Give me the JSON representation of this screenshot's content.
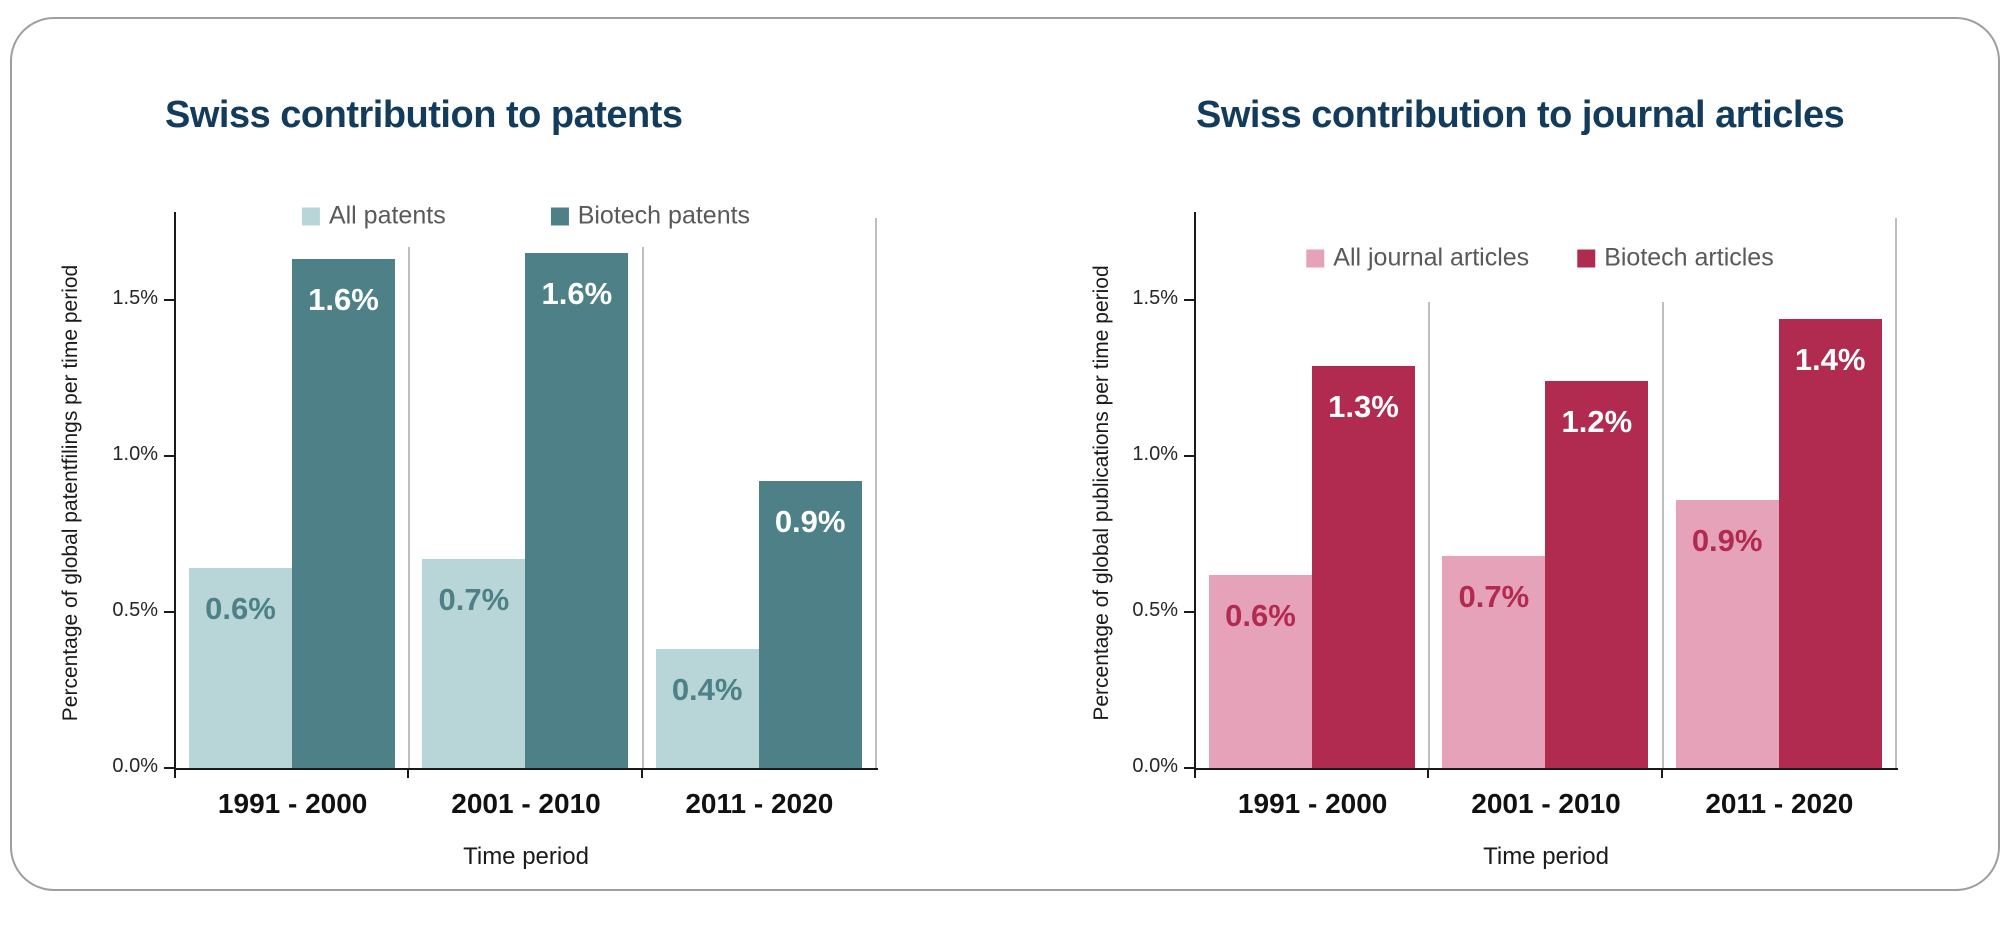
{
  "colors": {
    "title_text": "#133C5C",
    "legend_text": "#595959",
    "axis_line": "#1A1A1A",
    "separator_line": "#BFBFBF",
    "card_border": "#9E9E9E",
    "tick_label_text": "#262626",
    "category_label_text": "#111111"
  },
  "chart_data": [
    {
      "type": "bar",
      "title": "Swiss contribution to patents",
      "xlabel": "Time period",
      "ylabel": "Percentage of global patentfilings per time period",
      "categories": [
        "1991 - 2000",
        "2001 - 2010",
        "2011 - 2020"
      ],
      "series": [
        {
          "name": "All patents",
          "color": "#B8D6D8",
          "label_color": "#4D8187",
          "values": [
            0.6,
            0.7,
            0.4
          ],
          "labels": [
            "0.6%",
            "0.7%",
            "0.4%"
          ],
          "bar_heights_pct": [
            0.64,
            0.67,
            0.38
          ]
        },
        {
          "name": "Biotech patents",
          "color": "#4D8187",
          "label_color": "#FFFFFF",
          "values": [
            1.6,
            1.6,
            0.9
          ],
          "labels": [
            "1.6%",
            "1.6%",
            "0.9%"
          ],
          "bar_heights_pct": [
            1.63,
            1.65,
            0.92
          ]
        }
      ],
      "y_ticks": [
        "0.0%",
        "0.5%",
        "1.0%",
        "1.5%"
      ],
      "ylim": [
        0,
        1.75
      ],
      "legend_position": "top",
      "grid": "vertical category separators only"
    },
    {
      "type": "bar",
      "title": "Swiss contribution to journal articles",
      "xlabel": "Time period",
      "ylabel": "Percentage of global publications per time period",
      "categories": [
        "1991 - 2000",
        "2001 - 2010",
        "2011 - 2020"
      ],
      "series": [
        {
          "name": "All journal articles",
          "color": "#E6A2B8",
          "label_color": "#B02B4F",
          "values": [
            0.6,
            0.7,
            0.9
          ],
          "labels": [
            "0.6%",
            "0.7%",
            "0.9%"
          ],
          "bar_heights_pct": [
            0.62,
            0.68,
            0.86
          ]
        },
        {
          "name": "Biotech articles",
          "color": "#B02B4F",
          "label_color": "#FFFFFF",
          "values": [
            1.3,
            1.2,
            1.4
          ],
          "labels": [
            "1.3%",
            "1.2%",
            "1.4%"
          ],
          "bar_heights_pct": [
            1.29,
            1.24,
            1.44
          ]
        }
      ],
      "y_ticks": [
        "0.0%",
        "0.5%",
        "1.0%",
        "1.5%"
      ],
      "ylim": [
        0,
        1.75
      ],
      "legend_position": "top",
      "grid": "vertical category separators only"
    }
  ]
}
